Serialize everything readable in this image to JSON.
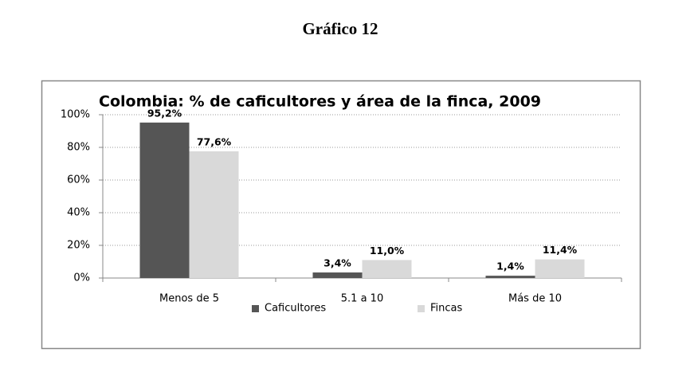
{
  "heading": "Gráfico 12",
  "chart_data": {
    "type": "bar",
    "title": "Colombia: % de caficultores y área de la finca, 2009",
    "categories": [
      "Menos de 5",
      "5.1 a 10",
      "Más de 10"
    ],
    "series": [
      {
        "name": "Caficultores",
        "color": "#555555",
        "values": [
          95.2,
          3.4,
          1.4
        ],
        "value_labels": [
          "95,2%",
          "3,4%",
          "1,4%"
        ]
      },
      {
        "name": "Fincas",
        "color": "#d9d9d9",
        "values": [
          77.6,
          11.0,
          11.4
        ],
        "value_labels": [
          "77,6%",
          "11,0%",
          "11,4%"
        ]
      }
    ],
    "ylim": [
      0,
      100
    ],
    "yticks": [
      {
        "value": 0,
        "label": "0%"
      },
      {
        "value": 20,
        "label": "20%"
      },
      {
        "value": 40,
        "label": "40%"
      },
      {
        "value": 60,
        "label": "60%"
      },
      {
        "value": 80,
        "label": "80%"
      },
      {
        "value": 100,
        "label": "100%"
      }
    ],
    "grid": true,
    "legend": "bottom"
  }
}
